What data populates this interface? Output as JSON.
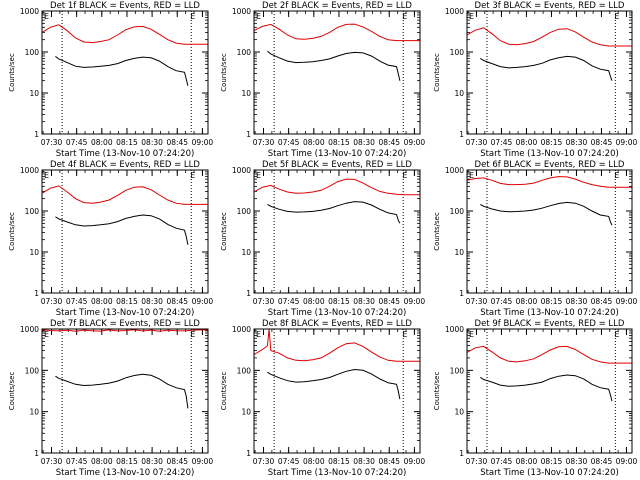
{
  "colors": {
    "events": "#000000",
    "lld": "#e00000",
    "axis": "#000000",
    "background": "#ffffff"
  },
  "shared": {
    "ylabel": "Counts/sec",
    "xlabel": "Start Time (13-Nov-10 07:24:20)",
    "x_tick_labels": [
      "07:30",
      "07:45",
      "08:00",
      "08:15",
      "08:30",
      "08:45",
      "09:00"
    ],
    "y_tick_labels": [
      "1",
      "10",
      "100",
      "1000"
    ],
    "corner_markers": [
      "E",
      "E"
    ]
  },
  "chart_data": [
    {
      "type": "line",
      "title": "Det 1f BLACK = Events, RED = LLD",
      "x_unit": "minutes after 07:24:20",
      "xlim": [
        0,
        99
      ],
      "ylim": [
        1,
        1000
      ],
      "yscale": "log",
      "vlines": [
        12,
        89
      ],
      "series": [
        {
          "name": "LLD",
          "x": [
            0,
            5,
            10,
            15,
            20,
            25,
            30,
            35,
            40,
            45,
            50,
            55,
            60,
            65,
            70,
            75,
            80,
            85,
            90,
            95,
            99
          ],
          "y": [
            300,
            400,
            460,
            330,
            220,
            175,
            170,
            180,
            200,
            260,
            350,
            410,
            420,
            360,
            270,
            200,
            165,
            155,
            155,
            155,
            155
          ]
        },
        {
          "name": "Events",
          "x": [
            8,
            10,
            15,
            20,
            25,
            30,
            35,
            40,
            45,
            50,
            55,
            60,
            65,
            70,
            75,
            80,
            85,
            86,
            87
          ],
          "y": [
            78,
            68,
            55,
            45,
            42,
            43,
            45,
            47,
            52,
            62,
            70,
            75,
            72,
            60,
            44,
            35,
            32,
            22,
            15
          ]
        }
      ]
    },
    {
      "type": "line",
      "title": "Det 2f BLACK = Events, RED = LLD",
      "x_unit": "minutes after 07:24:20",
      "xlim": [
        0,
        99
      ],
      "ylim": [
        1,
        1000
      ],
      "yscale": "log",
      "vlines": [
        12,
        89
      ],
      "series": [
        {
          "name": "LLD",
          "x": [
            0,
            5,
            10,
            15,
            20,
            25,
            30,
            35,
            40,
            45,
            50,
            55,
            60,
            65,
            70,
            75,
            80,
            85,
            90,
            95,
            99
          ],
          "y": [
            330,
            420,
            470,
            360,
            260,
            210,
            205,
            215,
            240,
            300,
            400,
            470,
            480,
            410,
            320,
            240,
            200,
            190,
            190,
            190,
            190
          ]
        },
        {
          "name": "Events",
          "x": [
            8,
            10,
            15,
            20,
            25,
            30,
            35,
            40,
            45,
            50,
            55,
            60,
            65,
            70,
            75,
            80,
            85,
            86,
            87
          ],
          "y": [
            105,
            90,
            72,
            60,
            55,
            56,
            58,
            62,
            68,
            80,
            92,
            98,
            95,
            80,
            60,
            48,
            44,
            30,
            20
          ]
        }
      ]
    },
    {
      "type": "line",
      "title": "Det 3f BLACK = Events, RED = LLD",
      "x_unit": "minutes after 07:24:20",
      "xlim": [
        0,
        99
      ],
      "ylim": [
        1,
        1000
      ],
      "yscale": "log",
      "vlines": [
        12,
        89
      ],
      "series": [
        {
          "name": "LLD",
          "x": [
            0,
            5,
            10,
            15,
            20,
            25,
            30,
            35,
            40,
            45,
            50,
            55,
            60,
            65,
            70,
            75,
            80,
            85,
            90,
            95,
            99
          ],
          "y": [
            260,
            340,
            390,
            280,
            190,
            155,
            150,
            160,
            180,
            230,
            300,
            360,
            370,
            310,
            230,
            175,
            150,
            140,
            140,
            140,
            140
          ]
        },
        {
          "name": "Events",
          "x": [
            8,
            10,
            15,
            20,
            25,
            30,
            35,
            40,
            45,
            50,
            55,
            60,
            65,
            70,
            75,
            80,
            85,
            86,
            87
          ],
          "y": [
            70,
            62,
            52,
            44,
            41,
            42,
            44,
            47,
            53,
            64,
            72,
            78,
            75,
            62,
            46,
            38,
            35,
            26,
            20
          ]
        }
      ]
    },
    {
      "type": "line",
      "title": "Det 4f BLACK = Events, RED = LLD",
      "x_unit": "minutes after 07:24:20",
      "xlim": [
        0,
        99
      ],
      "ylim": [
        1,
        1000
      ],
      "yscale": "log",
      "vlines": [
        12,
        89
      ],
      "series": [
        {
          "name": "LLD",
          "x": [
            0,
            5,
            10,
            15,
            20,
            25,
            30,
            35,
            40,
            45,
            50,
            55,
            60,
            65,
            70,
            75,
            80,
            85,
            90,
            95,
            99
          ],
          "y": [
            270,
            360,
            410,
            290,
            200,
            160,
            155,
            165,
            185,
            240,
            320,
            380,
            390,
            330,
            245,
            185,
            155,
            145,
            145,
            145,
            145
          ]
        },
        {
          "name": "Events",
          "x": [
            8,
            10,
            15,
            20,
            25,
            30,
            35,
            40,
            45,
            50,
            55,
            60,
            65,
            70,
            75,
            80,
            85,
            86,
            87
          ],
          "y": [
            72,
            64,
            54,
            46,
            43,
            44,
            46,
            49,
            55,
            66,
            74,
            80,
            77,
            64,
            47,
            38,
            34,
            24,
            15
          ]
        }
      ]
    },
    {
      "type": "line",
      "title": "Det 5f BLACK = Events, RED = LLD",
      "x_unit": "minutes after 07:24:20",
      "xlim": [
        0,
        99
      ],
      "ylim": [
        1,
        1000
      ],
      "yscale": "log",
      "vlines": [
        12,
        89
      ],
      "series": [
        {
          "name": "LLD",
          "x": [
            0,
            5,
            10,
            15,
            20,
            25,
            30,
            35,
            40,
            45,
            50,
            55,
            60,
            65,
            70,
            75,
            80,
            85,
            90,
            95,
            99
          ],
          "y": [
            290,
            380,
            420,
            340,
            290,
            270,
            275,
            290,
            320,
            400,
            520,
            600,
            590,
            480,
            370,
            300,
            270,
            255,
            250,
            250,
            250
          ]
        },
        {
          "name": "Events",
          "x": [
            8,
            10,
            15,
            20,
            25,
            30,
            35,
            40,
            45,
            50,
            55,
            60,
            65,
            70,
            75,
            80,
            85,
            86,
            87
          ],
          "y": [
            145,
            130,
            110,
            98,
            94,
            95,
            98,
            104,
            115,
            135,
            155,
            170,
            165,
            140,
            110,
            90,
            82,
            60,
            50
          ]
        }
      ]
    },
    {
      "type": "line",
      "title": "Det 6f BLACK = Events, RED = LLD",
      "x_unit": "minutes after 07:24:20",
      "xlim": [
        0,
        99
      ],
      "ylim": [
        1,
        1000
      ],
      "yscale": "log",
      "vlines": [
        12,
        89
      ],
      "series": [
        {
          "name": "LLD",
          "x": [
            0,
            5,
            10,
            15,
            20,
            25,
            30,
            35,
            40,
            45,
            50,
            55,
            60,
            65,
            70,
            75,
            80,
            85,
            90,
            95,
            99
          ],
          "y": [
            560,
            620,
            640,
            560,
            470,
            440,
            440,
            450,
            480,
            560,
            640,
            690,
            680,
            600,
            500,
            440,
            400,
            380,
            380,
            380,
            380
          ]
        },
        {
          "name": "Events",
          "x": [
            8,
            10,
            15,
            20,
            25,
            30,
            35,
            40,
            45,
            50,
            55,
            60,
            65,
            70,
            75,
            80,
            85,
            86,
            87
          ],
          "y": [
            145,
            130,
            112,
            100,
            96,
            97,
            100,
            106,
            117,
            135,
            152,
            162,
            155,
            130,
            100,
            80,
            74,
            55,
            45
          ]
        }
      ]
    },
    {
      "type": "line",
      "title": "Det 7f BLACK = Events, RED = LLD",
      "x_unit": "minutes after 07:24:20",
      "xlim": [
        0,
        99
      ],
      "ylim": [
        1,
        1000
      ],
      "yscale": "log",
      "vlines": [
        12,
        89
      ],
      "series": [
        {
          "name": "LLD",
          "x": [
            0,
            5,
            10,
            15,
            20,
            25,
            30,
            35,
            40,
            45,
            50,
            55,
            60,
            65,
            70,
            75,
            80,
            85,
            90,
            95,
            99
          ],
          "y": [
            960,
            920,
            900,
            930,
            880,
            940,
            910,
            890,
            950,
            900,
            920,
            960,
            900,
            940,
            880,
            930,
            910,
            900,
            940,
            950,
            950
          ]
        },
        {
          "name": "Events",
          "x": [
            8,
            10,
            15,
            20,
            25,
            30,
            35,
            40,
            45,
            50,
            55,
            60,
            65,
            70,
            75,
            80,
            85,
            86,
            87
          ],
          "y": [
            72,
            64,
            54,
            46,
            43,
            44,
            46,
            49,
            55,
            66,
            75,
            80,
            76,
            62,
            46,
            38,
            34,
            24,
            12
          ]
        }
      ]
    },
    {
      "type": "line",
      "title": "Det 8f BLACK = Events, RED = LLD",
      "x_unit": "minutes after 07:24:20",
      "xlim": [
        0,
        99
      ],
      "ylim": [
        1,
        1000
      ],
      "yscale": "log",
      "vlines": [
        12,
        89
      ],
      "series": [
        {
          "name": "LLD",
          "x": [
            0,
            5,
            8,
            9,
            10,
            15,
            20,
            25,
            30,
            35,
            40,
            45,
            50,
            55,
            60,
            65,
            70,
            75,
            80,
            85,
            90,
            95,
            99
          ],
          "y": [
            240,
            320,
            390,
            1000,
            300,
            260,
            200,
            175,
            170,
            180,
            200,
            260,
            350,
            440,
            460,
            380,
            280,
            210,
            175,
            165,
            165,
            165,
            165
          ]
        },
        {
          "name": "Events",
          "x": [
            8,
            10,
            15,
            20,
            25,
            30,
            35,
            40,
            45,
            50,
            55,
            60,
            65,
            70,
            75,
            80,
            85,
            86,
            87
          ],
          "y": [
            90,
            80,
            66,
            56,
            52,
            53,
            56,
            60,
            67,
            80,
            95,
            105,
            100,
            82,
            62,
            50,
            46,
            32,
            20
          ]
        }
      ]
    },
    {
      "type": "line",
      "title": "Det 9f BLACK = Events, RED = LLD",
      "x_unit": "minutes after 07:24:20",
      "xlim": [
        0,
        99
      ],
      "ylim": [
        1,
        1000
      ],
      "yscale": "log",
      "vlines": [
        12,
        89
      ],
      "series": [
        {
          "name": "LLD",
          "x": [
            0,
            5,
            10,
            15,
            20,
            25,
            30,
            35,
            40,
            45,
            50,
            55,
            60,
            65,
            70,
            75,
            80,
            85,
            90,
            95,
            99
          ],
          "y": [
            270,
            350,
            380,
            280,
            200,
            165,
            160,
            170,
            190,
            240,
            310,
            370,
            380,
            320,
            240,
            185,
            160,
            150,
            150,
            150,
            150
          ]
        },
        {
          "name": "Events",
          "x": [
            8,
            10,
            15,
            20,
            25,
            30,
            35,
            40,
            45,
            50,
            55,
            60,
            65,
            70,
            75,
            80,
            85,
            86,
            87
          ],
          "y": [
            68,
            60,
            52,
            44,
            41,
            42,
            44,
            47,
            52,
            63,
            72,
            77,
            74,
            62,
            46,
            38,
            35,
            26,
            18
          ]
        }
      ]
    }
  ]
}
